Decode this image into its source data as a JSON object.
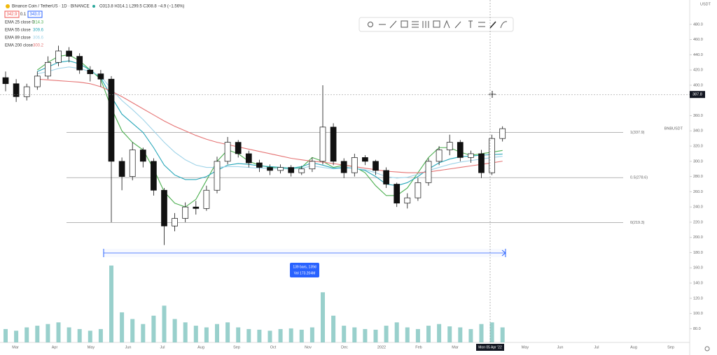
{
  "chart_data": {
    "type": "candlestick",
    "title": "Binance Coin / TetherUS · 1D · BINANCE",
    "ohlc_text": "O313.8 H314.1 L299.5 C308.8 −4.9 (−1.56%)",
    "quote": {
      "sell": 342.9,
      "spread": 0.1,
      "buy": {
        "value": 343.0,
        "label": "343.0"
      }
    },
    "currency": "USDT",
    "symbol_label": "BNBUSDT",
    "up_color": "#ffffff",
    "down_color": "#111111",
    "open": [
      410,
      402,
      385,
      398,
      412,
      430,
      445,
      438,
      420,
      415,
      408,
      300,
      280,
      315,
      300,
      262,
      215,
      225,
      240,
      238,
      262,
      300,
      325,
      310,
      298,
      292,
      288,
      292,
      285,
      290,
      300,
      345,
      300,
      285,
      305,
      300,
      288,
      270,
      245,
      252,
      272,
      300,
      315,
      325,
      305,
      310,
      285,
      330
    ],
    "high": [
      418,
      408,
      402,
      418,
      438,
      452,
      450,
      442,
      425,
      420,
      412,
      305,
      325,
      318,
      304,
      265,
      232,
      246,
      248,
      268,
      306,
      332,
      328,
      314,
      302,
      296,
      296,
      295,
      294,
      305,
      400,
      350,
      304,
      310,
      308,
      302,
      292,
      272,
      258,
      278,
      304,
      320,
      335,
      328,
      314,
      315,
      335,
      346
    ],
    "low": [
      392,
      378,
      380,
      394,
      408,
      425,
      430,
      415,
      405,
      398,
      220,
      262,
      275,
      292,
      255,
      190,
      208,
      220,
      230,
      235,
      258,
      296,
      305,
      292,
      286,
      282,
      284,
      280,
      282,
      286,
      296,
      295,
      278,
      280,
      295,
      282,
      265,
      240,
      238,
      248,
      268,
      295,
      308,
      300,
      298,
      278,
      282,
      326
    ],
    "close": [
      402,
      385,
      398,
      412,
      430,
      445,
      438,
      420,
      415,
      408,
      300,
      280,
      315,
      300,
      262,
      215,
      225,
      240,
      238,
      262,
      300,
      325,
      310,
      298,
      292,
      288,
      292,
      285,
      290,
      300,
      345,
      300,
      285,
      305,
      300,
      288,
      270,
      245,
      252,
      272,
      300,
      315,
      325,
      305,
      310,
      285,
      330,
      342.9
    ],
    "series": [
      {
        "name": "EMA 25 close 0",
        "color": "#4caf50",
        "values": [
          null,
          null,
          null,
          420,
          430,
          438,
          440,
          432,
          420,
          408,
          370,
          340,
          325,
          315,
          290,
          260,
          245,
          240,
          250,
          275,
          300,
          315,
          310,
          300,
          295,
          292,
          292,
          290,
          292,
          305,
          300,
          292,
          295,
          293,
          285,
          268,
          255,
          255,
          265,
          285,
          305,
          318,
          318,
          312,
          308,
          310,
          312,
          314.3
        ]
      },
      {
        "name": "EMA 55 close",
        "color": "#26a6b8",
        "values": [
          null,
          null,
          null,
          418,
          424,
          430,
          432,
          428,
          420,
          410,
          385,
          362,
          350,
          338,
          318,
          295,
          282,
          276,
          276,
          280,
          288,
          295,
          297,
          296,
          294,
          293,
          292,
          291,
          293,
          298,
          295,
          291,
          292,
          291,
          288,
          280,
          270,
          268,
          272,
          280,
          290,
          298,
          303,
          306,
          307,
          308,
          308.8,
          309.6
        ]
      },
      {
        "name": "EMA 89 close",
        "color": "#9fd3e8",
        "values": [
          null,
          null,
          null,
          415,
          418,
          422,
          424,
          422,
          418,
          412,
          395,
          380,
          368,
          355,
          340,
          325,
          312,
          302,
          295,
          292,
          292,
          293,
          293,
          292,
          291,
          291,
          290,
          290,
          291,
          294,
          292,
          290,
          291,
          291,
          289,
          285,
          280,
          278,
          279,
          283,
          288,
          292,
          296,
          299,
          301,
          303,
          305,
          306.6
        ]
      },
      {
        "name": "EMA 200 close",
        "color": "#e57373",
        "values": [
          null,
          null,
          null,
          408,
          407,
          406,
          405,
          404,
          402,
          398,
          392,
          385,
          377,
          369,
          361,
          353,
          346,
          340,
          334,
          329,
          325,
          322,
          319,
          316,
          313,
          310,
          307,
          304,
          302,
          300,
          299,
          297,
          295,
          293,
          291,
          289,
          287,
          286,
          285,
          285,
          286,
          288,
          290,
          292,
          294,
          296,
          298,
          300.2
        ]
      }
    ],
    "volume": {
      "color": "#80c4bf",
      "ylim": [
        0,
        230
      ],
      "values": [
        40,
        35,
        45,
        50,
        55,
        60,
        45,
        40,
        35,
        40,
        230,
        90,
        70,
        55,
        80,
        110,
        70,
        60,
        50,
        45,
        55,
        60,
        45,
        40,
        38,
        35,
        40,
        42,
        38,
        45,
        150,
        80,
        50,
        45,
        40,
        38,
        50,
        60,
        45,
        40,
        50,
        55,
        48,
        45,
        40,
        55,
        60,
        45
      ]
    },
    "levels": [
      {
        "value": 337.9,
        "label": "1(337.9)"
      },
      {
        "value": 278.6,
        "label": "0.5(278.6)"
      },
      {
        "value": 219.3,
        "label": "0(219.3)"
      }
    ],
    "crosshair": {
      "value": 387.8,
      "date": "Mon 05 Apr '22"
    },
    "measure": {
      "lines": [
        "139 bars, 139d",
        "Vol 173.204M"
      ]
    },
    "x_labels": [
      "Mar",
      "Apr",
      "May",
      "Jun",
      "Jul",
      "Aug",
      "Sep",
      "Oct",
      "Nov",
      "Dec",
      "2022",
      "Feb",
      "Mar",
      "May",
      "Jun",
      "Jul",
      "Aug",
      "Sep"
    ],
    "ylim": [
      62,
      512
    ],
    "yticks": [
      {
        "value": 480,
        "label": "480.0"
      },
      {
        "value": 460,
        "label": "460.0"
      },
      {
        "value": 440,
        "label": "440.0"
      },
      {
        "value": 420,
        "label": "420.0"
      },
      {
        "value": 400,
        "label": "400.0"
      },
      {
        "value": 360,
        "label": "360.0"
      },
      {
        "value": 340,
        "label": "340.0"
      },
      {
        "value": 320,
        "label": "320.0"
      },
      {
        "value": 300,
        "label": "300.0"
      },
      {
        "value": 280,
        "label": "280.0"
      },
      {
        "value": 260,
        "label": "260.0"
      },
      {
        "value": 240,
        "label": "240.0"
      },
      {
        "value": 220,
        "label": "220.0"
      },
      {
        "value": 200,
        "label": "200.0"
      },
      {
        "value": 180,
        "label": "180.0"
      },
      {
        "value": 160,
        "label": "160.0"
      },
      {
        "value": 140,
        "label": "140.0"
      },
      {
        "value": 120,
        "label": "120.0"
      },
      {
        "value": 100,
        "label": "100.0"
      },
      {
        "value": 80,
        "label": "80.0"
      }
    ]
  }
}
